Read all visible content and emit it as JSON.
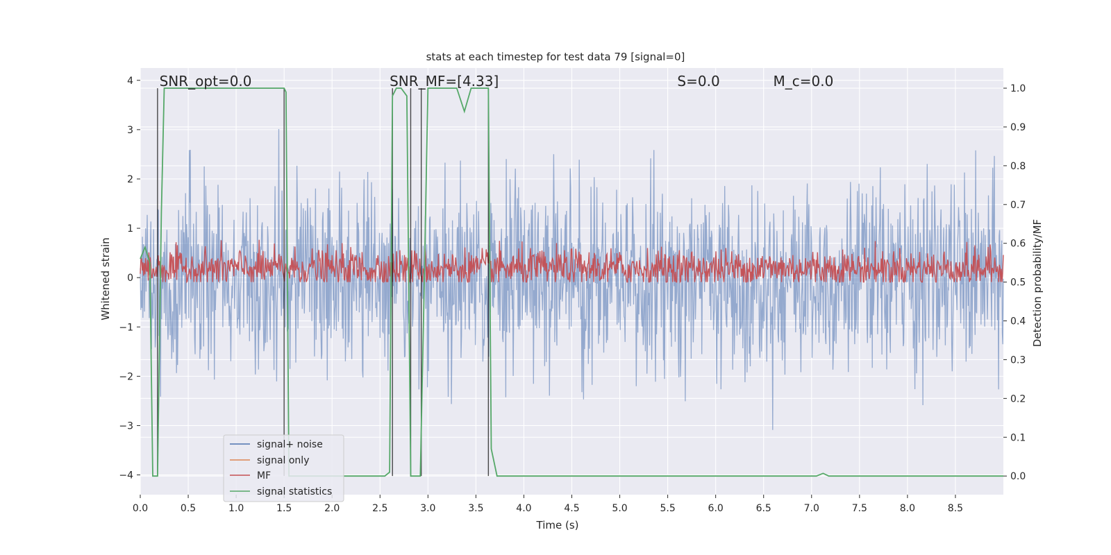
{
  "chart_data": {
    "type": "line",
    "title": "stats at each timestep for test data 79 [signal=0]",
    "xlabel": "Time (s)",
    "ylabel_left": "Whitened strain",
    "ylabel_right": "Detection probability/MF",
    "xlim": [
      0.0,
      9.0
    ],
    "ylim_left": [
      -4.4,
      4.25
    ],
    "ylim_right": [
      -0.048,
      1.052
    ],
    "x_ticks": [
      "0.0",
      "0.5",
      "1.0",
      "1.5",
      "2.0",
      "2.5",
      "3.0",
      "3.5",
      "4.0",
      "4.5",
      "5.0",
      "5.5",
      "6.0",
      "6.5",
      "7.0",
      "7.5",
      "8.0",
      "8.5"
    ],
    "y_left_ticks": [
      "−4",
      "−3",
      "−2",
      "−1",
      "0",
      "1",
      "2",
      "3",
      "4"
    ],
    "y_right_ticks": [
      "0.0",
      "0.1",
      "0.2",
      "0.3",
      "0.4",
      "0.5",
      "0.6",
      "0.7",
      "0.8",
      "0.9",
      "1.0"
    ],
    "grid": true,
    "legend_position": "lower-left",
    "annotations": [
      {
        "text": "SNR_opt=0.0",
        "x": 0.2
      },
      {
        "text": "SNR_MF=[4.33]",
        "x": 2.6
      },
      {
        "text": "S=0.0",
        "x": 5.6
      },
      {
        "text": "M_c=0.0",
        "x": 6.6
      }
    ],
    "series": [
      {
        "name": "signal+ noise",
        "axis": "left",
        "color": "#4c72b0",
        "description_kind": "gaussian-noise",
        "sample_rate": 180,
        "std": 0.95
      },
      {
        "name": "signal only",
        "axis": "left",
        "color": "#dd8452",
        "values_constant": 0.0
      },
      {
        "name": "MF",
        "axis": "right",
        "color": "#c44e52",
        "mean": 0.535,
        "spread": 0.025
      },
      {
        "name": "signal statistics",
        "axis": "right",
        "color": "#55a868",
        "x": [
          0.0,
          0.05,
          0.1,
          0.13,
          0.18,
          0.22,
          0.25,
          0.3,
          1.5,
          1.52,
          1.55,
          1.6,
          2.0,
          2.55,
          2.6,
          2.63,
          2.67,
          2.72,
          2.78,
          2.82,
          2.85,
          2.92,
          2.96,
          3.0,
          3.3,
          3.38,
          3.45,
          3.5,
          3.63,
          3.66,
          3.72,
          3.8,
          4.0,
          7.05,
          7.12,
          7.18,
          7.3,
          9.0
        ],
        "y": [
          0.56,
          0.59,
          0.55,
          0.0,
          0.0,
          0.68,
          1.0,
          1.0,
          1.0,
          0.99,
          0.0,
          0.0,
          0.0,
          0.0,
          0.01,
          0.98,
          1.0,
          1.0,
          0.98,
          0.0,
          0.0,
          0.0,
          0.48,
          1.0,
          1.0,
          0.94,
          1.0,
          1.0,
          1.0,
          0.07,
          0.0,
          0.0,
          0.0,
          0.0,
          0.007,
          0.0,
          0.0,
          0.0
        ]
      }
    ],
    "vertical_lines_x": [
      0.18,
      1.5,
      2.63,
      2.82,
      2.93,
      3.63
    ],
    "vertical_line_color": "#000000"
  }
}
